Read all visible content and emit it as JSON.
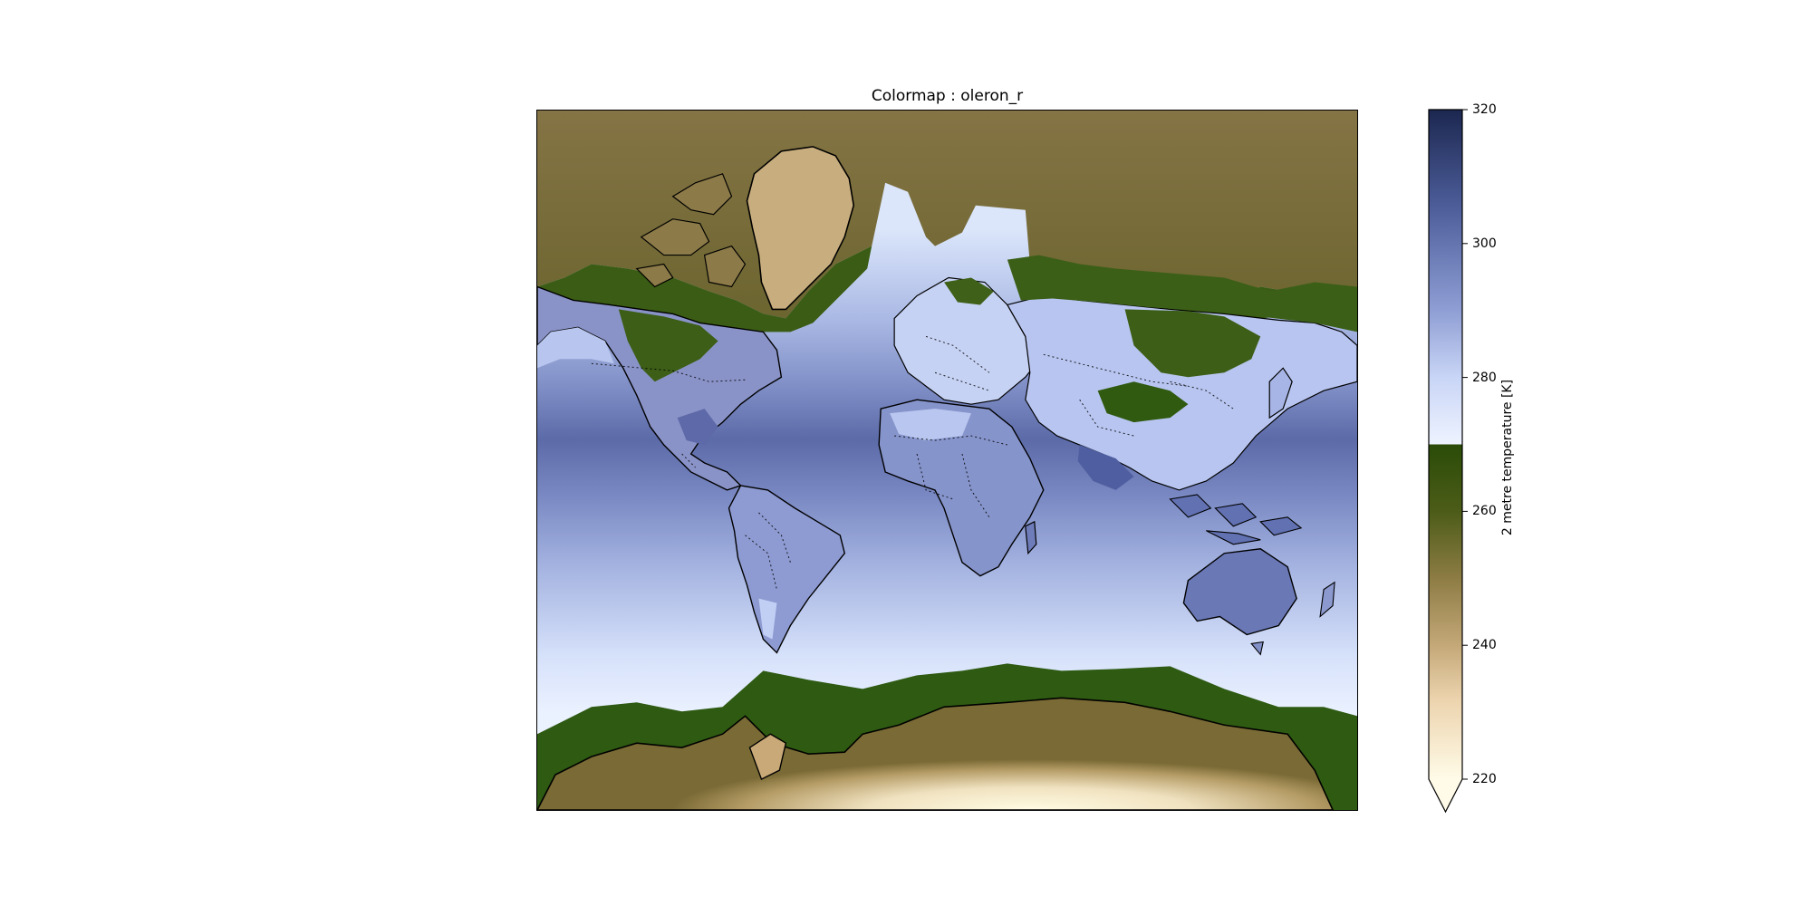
{
  "figure": {
    "title": "Colormap : oleron_r"
  },
  "map": {
    "projection": "Mercator",
    "field": "2 metre temperature",
    "features": [
      "coastlines",
      "country borders (dotted)"
    ],
    "colors": {
      "cold_land": "#6e6330",
      "ice_tan": "#d4b888",
      "ice_cream": "#fbf7dc",
      "green": "#2e5a12",
      "light_blue": "#dbe6fb",
      "mid_blue": "#9aaad8",
      "dark_blue": "#5c6ba8",
      "coast": "#000000"
    }
  },
  "colorbar": {
    "label": "2 metre temperature [K]",
    "ticks": [
      "320",
      "300",
      "280",
      "260",
      "240",
      "220"
    ],
    "tick_values": [
      320,
      300,
      280,
      260,
      240,
      220
    ],
    "range": [
      220,
      320
    ],
    "extend": "min",
    "stops": [
      {
        "value": 320,
        "color": "#1c2750"
      },
      {
        "value": 305,
        "color": "#4e5f9c"
      },
      {
        "value": 290,
        "color": "#8f9ed4"
      },
      {
        "value": 280,
        "color": "#c9d5f6"
      },
      {
        "value": 270.01,
        "color": "#eef3ff"
      },
      {
        "value": 270,
        "color": "#2a4c08"
      },
      {
        "value": 260,
        "color": "#4c5c18"
      },
      {
        "value": 250,
        "color": "#8d7c44"
      },
      {
        "value": 240,
        "color": "#c4a878"
      },
      {
        "value": 232,
        "color": "#ecd3ad"
      },
      {
        "value": 220,
        "color": "#fffbe8"
      }
    ]
  }
}
